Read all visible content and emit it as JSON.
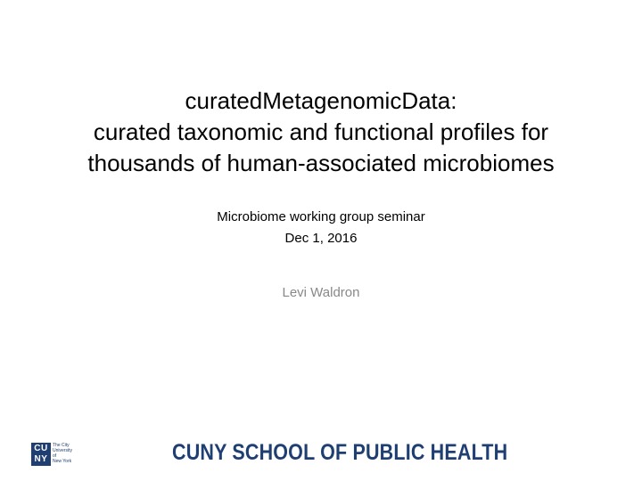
{
  "title": {
    "lines": [
      "curatedMetagenomicData:",
      "curated taxonomic and functional profiles for",
      "thousands of human-associated microbiomes"
    ]
  },
  "subtitle": {
    "event": "Microbiome working group seminar",
    "date": "Dec 1, 2016"
  },
  "author": "Levi Waldron",
  "footer": {
    "logo_mark": [
      "CU",
      "NY"
    ],
    "logo_text": [
      "The City",
      "University",
      "of",
      "New York"
    ],
    "school_name": "CUNY SCHOOL OF PUBLIC HEALTH"
  },
  "colors": {
    "brand_blue": "#1f3f73",
    "author_gray": "#888888"
  }
}
